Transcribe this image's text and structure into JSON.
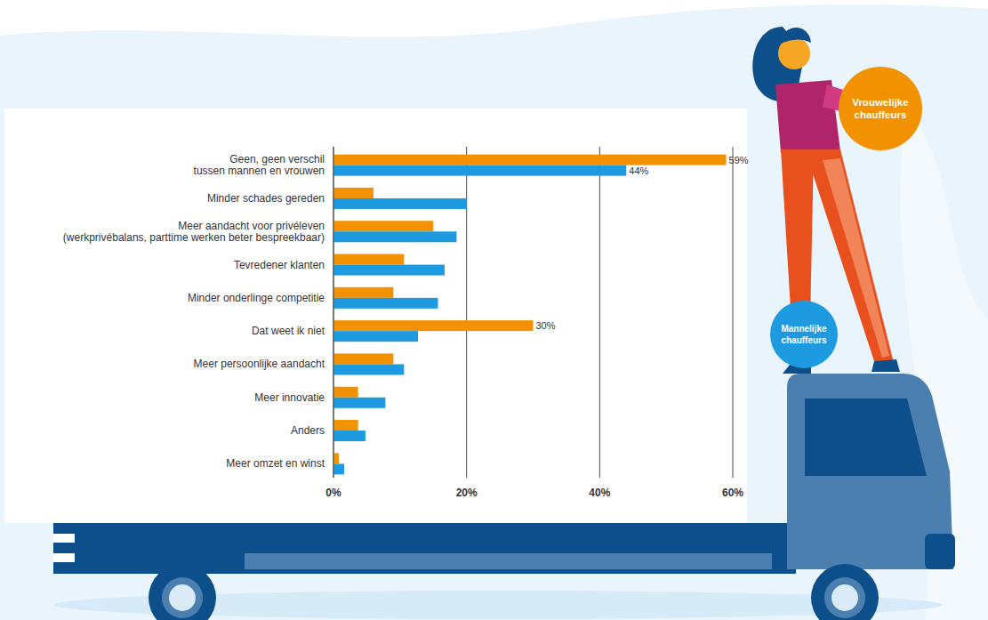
{
  "chart_data": {
    "type": "bar",
    "orientation": "horizontal",
    "categories": [
      "Geen, geen verschil\ntussen mannen en vrouwen",
      "Minder schades gereden",
      "Meer aandacht voor privéleven\n(werkprivébalans, parttime werken beter bespreekbaar)",
      "Tevredener klanten",
      "Minder onderlinge competitie",
      "Dat weet ik niet",
      "Meer persoonlijke aandacht",
      "Meer innovatie",
      "Anders",
      "Meer omzet en winst"
    ],
    "series": [
      {
        "name": "Vrouwelijke chauffeurs",
        "color": "#f39200",
        "values": [
          59,
          6,
          15,
          10.6,
          9,
          30,
          9,
          3.7,
          3.7,
          0.8
        ],
        "value_labels": [
          "59%",
          null,
          null,
          null,
          null,
          "30%",
          null,
          null,
          null,
          null
        ]
      },
      {
        "name": "Mannelijke chauffeurs",
        "color": "#1e9be0",
        "values": [
          44,
          20,
          18.5,
          16.7,
          15.7,
          12.7,
          10.6,
          7.8,
          4.8,
          1.6
        ],
        "value_labels": [
          "44%",
          null,
          null,
          null,
          null,
          null,
          null,
          null,
          null,
          null
        ]
      }
    ],
    "xlim": [
      0,
      60
    ],
    "xticks": [
      {
        "value": 0,
        "label": "0%"
      },
      {
        "value": 20,
        "label": "20%"
      },
      {
        "value": 40,
        "label": "40%"
      },
      {
        "value": 60,
        "label": "60%"
      }
    ],
    "grid": true,
    "data_labels": true,
    "legend": "right"
  }
}
